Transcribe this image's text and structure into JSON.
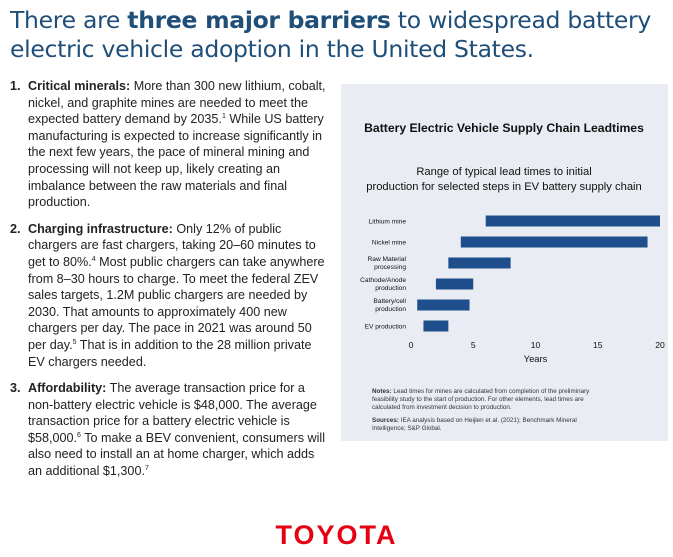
{
  "headline": {
    "prefix": "There are ",
    "emphasis": "three major barriers",
    "suffix": " to widespread battery electric vehicle adoption in the United States."
  },
  "barriers": [
    {
      "number": "1.",
      "label": "Critical minerals:",
      "parts": [
        {
          "text": " More than 300 new lithium, cobalt, nickel, and graphite mines are needed to meet the expected battery demand by 2035."
        },
        {
          "sup": "1"
        },
        {
          "text": " While US battery manufacturing is expected to increase significantly in the next few years, the pace of mineral mining and processing will not keep up, likely creating an imbalance between the raw materials and final production."
        }
      ]
    },
    {
      "number": "2.",
      "label": "Charging infrastructure:",
      "parts": [
        {
          "text": " Only 12% of public chargers are fast chargers, taking 20–60 minutes to get to 80%."
        },
        {
          "sup": "4"
        },
        {
          "text": " Most public chargers can take anywhere from 8–30 hours to charge. To meet the federal ZEV sales targets, 1.2M public chargers are needed by 2030. That amounts to approximately 400 new chargers per day. The pace in 2021 was around 50 per day."
        },
        {
          "sup": "5"
        },
        {
          "text": " That is in addition to the 28 million private EV chargers needed."
        }
      ]
    },
    {
      "number": "3.",
      "label": "Affordability:",
      "parts": [
        {
          "text": " The average transaction price for a non-battery electric vehicle is $48,000. The average transaction price for a battery electric vehicle is $58,000."
        },
        {
          "sup": "6"
        },
        {
          "text": " To make a BEV convenient, consumers will also need to install an at home charger, which adds an additional $1,300."
        },
        {
          "sup": "7"
        }
      ]
    }
  ],
  "chart_data": {
    "type": "bar",
    "orientation": "horizontal",
    "title": "Battery Electric Vehicle Supply Chain Leadtimes",
    "subtitle": "Range of typical lead times to initial production for selected steps in EV battery supply chain",
    "categories": [
      "Lithium mine",
      "Nickel mine",
      "Raw Material processing",
      "Cathode/Anode production",
      "Battery/cell production",
      "EV production"
    ],
    "ranges": [
      [
        6,
        20
      ],
      [
        4,
        19
      ],
      [
        3,
        8
      ],
      [
        2,
        5
      ],
      [
        0.5,
        4.7
      ],
      [
        1,
        3
      ]
    ],
    "xlabel": "Years",
    "xlim": [
      0,
      20
    ],
    "xticks": [
      0,
      5,
      10,
      15,
      20
    ],
    "bar_color": "#1f4e8c",
    "notes_label": "Notes:",
    "notes": "Lead times for mines are calculated from completion of the preliminary feasibility study to the start of production. For other elements, lead times are calculated from investment decision to production.",
    "sources_label": "Sources:",
    "sources": "IEA analysis based on Heijlen et al. (2021); Benchmark Mineral Intelligence; S&P Global."
  },
  "logo": {
    "text": "TOYOTA",
    "color": "#e60012"
  },
  "colors": {
    "headline": "#1f4e79",
    "panel_bg": "#e9ecf2"
  }
}
